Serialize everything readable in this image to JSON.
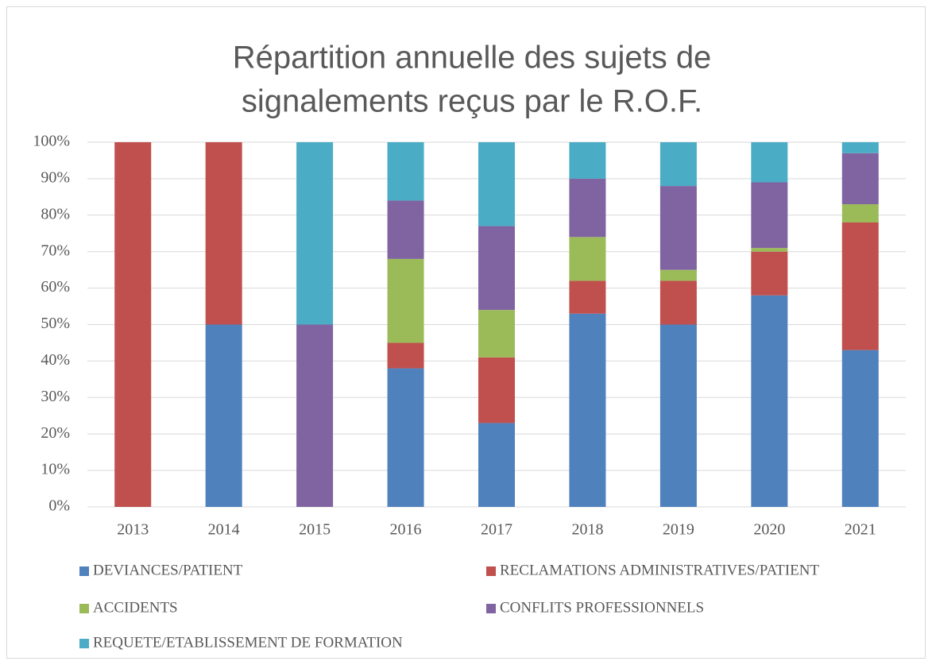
{
  "chart_data": {
    "type": "stacked_bar",
    "title": [
      "Répartition annuelle des sujets de",
      "signalements reçus par le R.O.F."
    ],
    "categories": [
      "2013",
      "2014",
      "2015",
      "2016",
      "2017",
      "2018",
      "2019",
      "2020",
      "2021"
    ],
    "series": [
      {
        "name": "DEVIANCES/PATIENT",
        "color": "#4f81bd",
        "values": [
          0,
          50,
          0,
          38,
          23,
          53,
          50,
          58,
          43
        ]
      },
      {
        "name": "RECLAMATIONS ADMINISTRATIVES/PATIENT",
        "color": "#c0504d",
        "values": [
          100,
          50,
          0,
          7,
          18,
          9,
          12,
          12,
          35
        ]
      },
      {
        "name": "ACCIDENTS",
        "color": "#9bbb59",
        "values": [
          0,
          0,
          0,
          23,
          13,
          12,
          3,
          1,
          5
        ]
      },
      {
        "name": "CONFLITS PROFESSIONNELS",
        "color": "#8064a2",
        "values": [
          0,
          0,
          50,
          16,
          23,
          16,
          23,
          18,
          14
        ]
      },
      {
        "name": "REQUETE/ETABLISSEMENT DE FORMATION",
        "color": "#4bacc6",
        "values": [
          0,
          0,
          50,
          16,
          23,
          10,
          12,
          11,
          3
        ]
      }
    ],
    "ylim": [
      0,
      100
    ],
    "yticks": [
      {
        "value": 0,
        "label": "0%"
      },
      {
        "value": 10,
        "label": "10%"
      },
      {
        "value": 20,
        "label": "20%"
      },
      {
        "value": 30,
        "label": "30%"
      },
      {
        "value": 40,
        "label": "40%"
      },
      {
        "value": 50,
        "label": "50%"
      },
      {
        "value": 60,
        "label": "60%"
      },
      {
        "value": 70,
        "label": "70%"
      },
      {
        "value": 80,
        "label": "80%"
      },
      {
        "value": 90,
        "label": "90%"
      },
      {
        "value": 100,
        "label": "100%"
      }
    ],
    "grid": true,
    "legend": "bottom"
  }
}
